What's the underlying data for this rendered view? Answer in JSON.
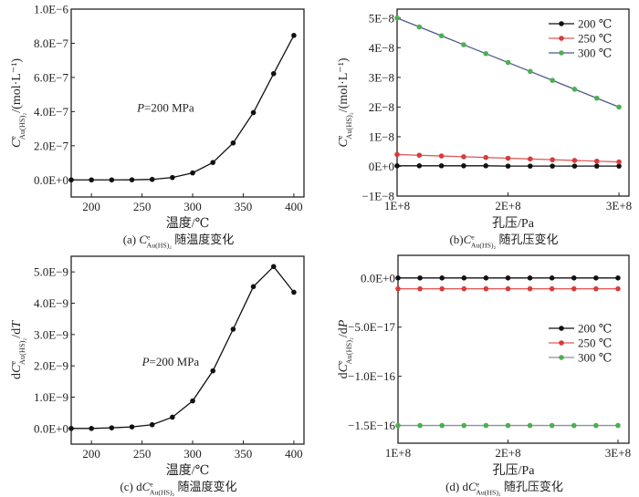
{
  "figure": {
    "panels_order": [
      "a",
      "b",
      "c",
      "d"
    ]
  },
  "chart_data": [
    {
      "id": "a",
      "type": "line",
      "title": "",
      "caption": {
        "prefix": "(a) ",
        "var": "C",
        "sup": "e",
        "sub": "Au(HS)₂",
        "suffix": " 随温度变化"
      },
      "xlabel": "温度/℃",
      "ylabel": {
        "prefix": "",
        "var": "C",
        "sup": "e",
        "sub": "Au(HS)₂",
        "suffix": "/(mol·L⁻¹)"
      },
      "xlim": [
        180,
        410
      ],
      "ylim": [
        -1e-07,
        1e-06
      ],
      "xticks": [
        200,
        250,
        300,
        350,
        400
      ],
      "xtick_labels": [
        "200",
        "250",
        "300",
        "350",
        "400"
      ],
      "yticks": [
        0,
        2e-07,
        4e-07,
        6e-07,
        8e-07,
        1e-06
      ],
      "ytick_labels": [
        "0.0E+0",
        "2.0E−7",
        "4.0E−7",
        "6.0E−7",
        "8.0E−7",
        "1.0E−6"
      ],
      "annotation": {
        "text_var": "P",
        "text_rest": "=200 MPa",
        "x": 245,
        "y": 4e-07
      },
      "legend": null,
      "grid": false,
      "series": [
        {
          "name": "P=200 MPa",
          "color": "#111111",
          "marker_color": "#111111",
          "x": [
            180,
            200,
            220,
            240,
            260,
            280,
            300,
            320,
            340,
            360,
            380,
            400
          ],
          "y": [
            0,
            0,
            0,
            5e-10,
            3e-09,
            1.4e-08,
            4.1e-08,
            1.02e-07,
            2.16e-07,
            3.94e-07,
            6.22e-07,
            8.46e-07
          ]
        }
      ]
    },
    {
      "id": "b",
      "type": "line",
      "title": "",
      "caption": {
        "prefix": "(b)",
        "var": "C",
        "sup": "e",
        "sub": "Au(HS)₂",
        "suffix": " 随孔压变化"
      },
      "xlabel": "孔压/Pa",
      "ylabel": {
        "prefix": "",
        "var": "C",
        "sup": "e",
        "sub": "Au(HS)₂",
        "suffix": "/(mol·L⁻¹)"
      },
      "xlim": [
        100000000.0,
        309000000.0
      ],
      "ylim": [
        -1e-08,
        5.3e-08
      ],
      "xticks": [
        100000000.0,
        200000000.0,
        300000000.0
      ],
      "xtick_labels": [
        "1E+8",
        "2E+8",
        "3E+8"
      ],
      "yticks": [
        -1e-08,
        0,
        1e-08,
        2e-08,
        3e-08,
        4e-08,
        5e-08
      ],
      "ytick_labels": [
        "−1E−8",
        "0E+0",
        "1E−8",
        "2E−8",
        "3E−8",
        "4E−8",
        "5E−8"
      ],
      "legend": {
        "position": "top-right",
        "entries": [
          "200 ℃",
          "250 ℃",
          "300 ℃"
        ]
      },
      "grid": false,
      "series": [
        {
          "name": "200 ℃",
          "color": "#111111",
          "marker_color": "#111111",
          "x": [
            100000000.0,
            120000000.0,
            140000000.0,
            160000000.0,
            180000000.0,
            200000000.0,
            220000000.0,
            240000000.0,
            260000000.0,
            280000000.0,
            300000000.0
          ],
          "y": [
            2e-10,
            2e-10,
            2e-10,
            2e-10,
            2e-10,
            1e-10,
            1e-10,
            1e-10,
            1e-10,
            1e-10,
            1e-10
          ]
        },
        {
          "name": "250 ℃",
          "color": "#e05a5a",
          "marker_color": "#d93a3a",
          "x": [
            100000000.0,
            120000000.0,
            140000000.0,
            160000000.0,
            180000000.0,
            200000000.0,
            220000000.0,
            240000000.0,
            260000000.0,
            280000000.0,
            300000000.0
          ],
          "y": [
            4e-09,
            3.75e-09,
            3.5e-09,
            3.25e-09,
            3e-09,
            2.75e-09,
            2.5e-09,
            2.25e-09,
            2e-09,
            1.75e-09,
            1.5e-09
          ]
        },
        {
          "name": "300 ℃",
          "color": "#4a5a8c",
          "marker_color": "#4caf50",
          "x": [
            100000000.0,
            120000000.0,
            140000000.0,
            160000000.0,
            180000000.0,
            200000000.0,
            220000000.0,
            240000000.0,
            260000000.0,
            280000000.0,
            300000000.0
          ],
          "y": [
            5e-08,
            4.7e-08,
            4.4e-08,
            4.1e-08,
            3.8e-08,
            3.5e-08,
            3.2e-08,
            2.9e-08,
            2.6e-08,
            2.3e-08,
            2e-08
          ]
        }
      ]
    },
    {
      "id": "c",
      "type": "line",
      "title": "",
      "caption": {
        "prefix": "(c) d",
        "var": "C",
        "sup": "e",
        "sub": "Au(HS)₂",
        "suffix": " 随温度变化"
      },
      "xlabel": "温度/℃",
      "ylabel": {
        "prefix": "d",
        "var": "C",
        "sup": "e",
        "sub": "Au(HS)₂",
        "suffix": "/d",
        "suffix_var": "T"
      },
      "xlim": [
        180,
        410
      ],
      "ylim": [
        -5e-10,
        5.5e-09
      ],
      "xticks": [
        200,
        250,
        300,
        350,
        400
      ],
      "xtick_labels": [
        "200",
        "250",
        "300",
        "350",
        "400"
      ],
      "yticks": [
        0,
        1e-09,
        2e-09,
        3e-09,
        4e-09,
        5e-09
      ],
      "ytick_labels": [
        "0.0E+0",
        "1.0E−9",
        "2.0E−9",
        "3.0E−9",
        "4.0E−9",
        "5.0E−9"
      ],
      "annotation": {
        "text_var": "P",
        "text_rest": "=200 MPa",
        "x": 250,
        "y": 2e-09
      },
      "legend": null,
      "grid": false,
      "series": [
        {
          "name": "P=200 MPa",
          "color": "#111111",
          "marker_color": "#111111",
          "x": [
            180,
            200,
            220,
            240,
            260,
            280,
            300,
            320,
            340,
            360,
            380,
            400
          ],
          "y": [
            0,
            0,
            2e-11,
            5e-11,
            1.2e-10,
            3.6e-10,
            8.8e-10,
            1.84e-09,
            3.17e-09,
            4.53e-09,
            5.17e-09,
            4.35e-09
          ]
        }
      ]
    },
    {
      "id": "d",
      "type": "line",
      "title": "",
      "caption": {
        "prefix": "(d) d",
        "var": "C",
        "sup": "e",
        "sub": "Au(HS)₂",
        "suffix": " 随孔压变化"
      },
      "xlabel": "孔压/Pa",
      "ylabel": {
        "prefix": "d",
        "var": "C",
        "sup": "e",
        "sub": "Au(HS)₂",
        "suffix": "/d",
        "suffix_var": "P"
      },
      "xlim": [
        100000000.0,
        310000000.0
      ],
      "ylim": [
        -1.68e-16,
        2.3e-17
      ],
      "xticks": [
        100000000.0,
        200000000.0,
        300000000.0
      ],
      "xtick_labels": [
        "1E+8",
        "2E+8",
        "3E+8"
      ],
      "yticks": [
        -1.5e-16,
        -1e-16,
        -5e-17,
        0
      ],
      "ytick_labels": [
        "−1.5E−16",
        "−1.0E−16",
        "−5.0E−17",
        "0.0E+0"
      ],
      "legend": {
        "position": "center-right",
        "entries": [
          "200 ℃",
          "250 ℃",
          "300 ℃"
        ]
      },
      "grid": false,
      "series": [
        {
          "name": "200 ℃",
          "color": "#111111",
          "marker_color": "#111111",
          "x": [
            100000000.0,
            120000000.0,
            140000000.0,
            160000000.0,
            180000000.0,
            200000000.0,
            220000000.0,
            240000000.0,
            260000000.0,
            280000000.0,
            300000000.0
          ],
          "y": [
            0,
            0,
            0,
            0,
            0,
            0,
            0,
            0,
            0,
            0,
            0
          ]
        },
        {
          "name": "250 ℃",
          "color": "#e05a5a",
          "marker_color": "#d93a3a",
          "x": [
            100000000.0,
            120000000.0,
            140000000.0,
            160000000.0,
            180000000.0,
            200000000.0,
            220000000.0,
            240000000.0,
            260000000.0,
            280000000.0,
            300000000.0
          ],
          "y": [
            -1.1e-17,
            -1.1e-17,
            -1.1e-17,
            -1.1e-17,
            -1.1e-17,
            -1.1e-17,
            -1.1e-17,
            -1.1e-17,
            -1.1e-17,
            -1.1e-17,
            -1.1e-17
          ]
        },
        {
          "name": "300 ℃",
          "color": "#8a8fa8",
          "marker_color": "#4caf50",
          "x": [
            100000000.0,
            120000000.0,
            140000000.0,
            160000000.0,
            180000000.0,
            200000000.0,
            220000000.0,
            240000000.0,
            260000000.0,
            280000000.0,
            300000000.0
          ],
          "y": [
            -1.5e-16,
            -1.5e-16,
            -1.5e-16,
            -1.5e-16,
            -1.5e-16,
            -1.5e-16,
            -1.5e-16,
            -1.5e-16,
            -1.5e-16,
            -1.5e-16,
            -1.5e-16
          ]
        }
      ]
    }
  ]
}
